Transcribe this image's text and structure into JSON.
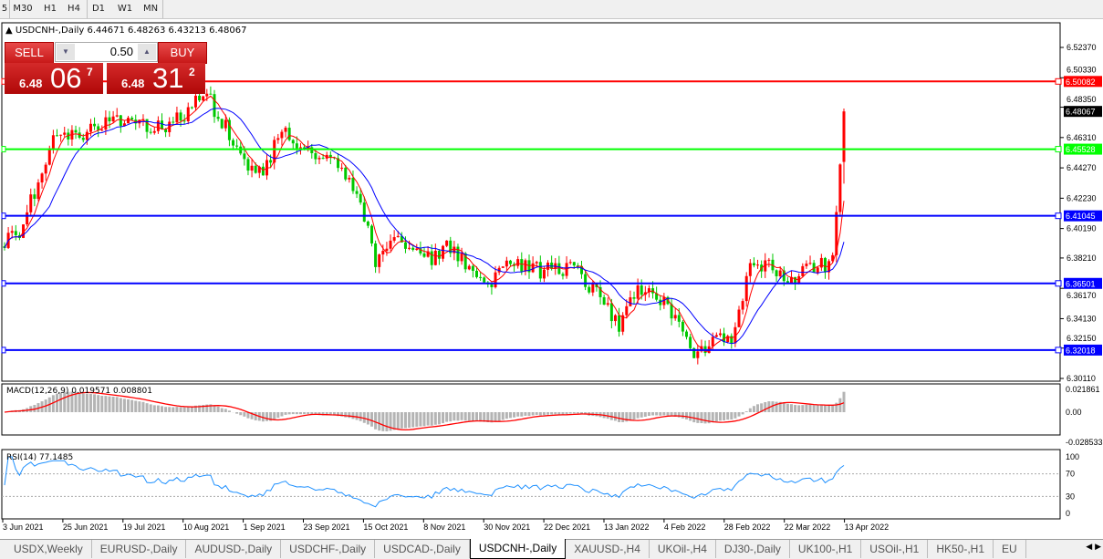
{
  "timeframes": [
    "5",
    "M30",
    "H1",
    "H4",
    "D1",
    "W1",
    "MN"
  ],
  "active_timeframe": "D1",
  "chart": {
    "symbol_line": "USDCNH-,Daily  6.44671 6.48263 6.43213 6.48067"
  },
  "trade_panel": {
    "sell_label": "SELL",
    "buy_label": "BUY",
    "lot": "0.50",
    "sell_price": {
      "small": "6.48",
      "large": "06",
      "sup": "7"
    },
    "buy_price": {
      "small": "6.48",
      "large": "31",
      "sup": "2"
    }
  },
  "chart_data": {
    "type": "candlestick",
    "weekly_closes": [
      6.39,
      6.399,
      6.433,
      6.467,
      6.464,
      6.467,
      6.475,
      6.476,
      6.471,
      6.47,
      6.482,
      6.491,
      6.47,
      6.448,
      6.436,
      6.47,
      6.457,
      6.451,
      6.448,
      6.424,
      6.381,
      6.395,
      6.391,
      6.383,
      6.39,
      6.376,
      6.365,
      6.376,
      6.376,
      6.373,
      6.375,
      6.372,
      6.353,
      6.338,
      6.364,
      6.359,
      6.338,
      6.318,
      6.324,
      6.329,
      6.373,
      6.381,
      6.362,
      6.373,
      6.378,
      6.481
    ],
    "last_bar": {
      "open": 6.44671,
      "high": 6.48263,
      "low": 6.43213,
      "close": 6.48067
    },
    "ylim": [
      6.3011,
      6.5237
    ],
    "price_ticks": [
      "6.52370",
      "6.50330",
      "6.48350",
      "6.46310",
      "6.44270",
      "6.42230",
      "6.40190",
      "6.38210",
      "6.36170",
      "6.34130",
      "6.32150",
      "6.30110"
    ],
    "x_ticks": [
      "3 Jun 2021",
      "25 Jun 2021",
      "19 Jul 2021",
      "10 Aug 2021",
      "1 Sep 2021",
      "23 Sep 2021",
      "15 Oct 2021",
      "8 Nov 2021",
      "30 Nov 2021",
      "22 Dec 2021",
      "13 Jan 2022",
      "4 Feb 2022",
      "28 Feb 2022",
      "22 Mar 2022",
      "13 Apr 2022"
    ],
    "hlines": [
      {
        "price": "6.50082",
        "color": "#ff0000"
      },
      {
        "price": "6.45528",
        "color": "#00ff00"
      },
      {
        "price": "6.41045",
        "color": "#0000ff"
      },
      {
        "price": "6.36501",
        "color": "#0000ff"
      },
      {
        "price": "6.32018",
        "color": "#0000ff"
      }
    ],
    "current_price": "6.48067",
    "colors": {
      "up": "#ff0000",
      "down": "#00c800",
      "ma_fast": "#ff0000",
      "ma_slow": "#0000ff"
    },
    "macd": {
      "label": "MACD(12,26,9) 0.019571 0.008801",
      "ticks": [
        "0.021861",
        "0.00",
        "-0.028533"
      ]
    },
    "rsi": {
      "label": "RSI(14) 77.1485",
      "ticks": [
        "100",
        "70",
        "30",
        "0"
      ],
      "levels": [
        70,
        30
      ]
    }
  },
  "tabs": [
    "USDX,Weekly",
    "EURUSD-,Daily",
    "AUDUSD-,Daily",
    "USDCHF-,Daily",
    "USDCAD-,Daily",
    "USDCNH-,Daily",
    "XAUUSD-,H4",
    "UKOil-,H4",
    "DJ30-,Daily",
    "UK100-,H1",
    "USOil-,H1",
    "HK50-,H1",
    "EU"
  ],
  "active_tab": "USDCNH-,Daily"
}
